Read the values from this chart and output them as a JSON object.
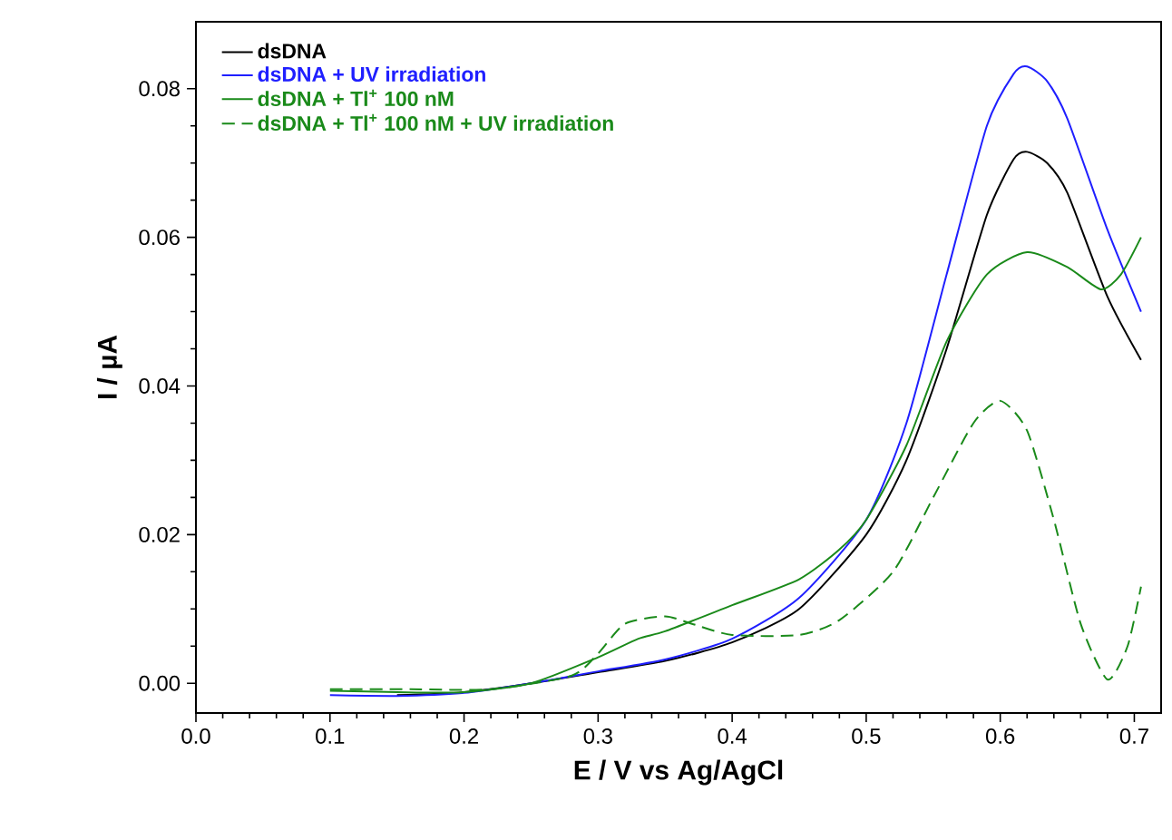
{
  "chart_data": {
    "type": "line",
    "xlabel": "E / V vs Ag/AgCl",
    "ylabel": "I / µA",
    "xlim": [
      0,
      0.72
    ],
    "ylim": [
      -0.004,
      0.089
    ],
    "xticks": [
      {
        "value": 0,
        "label": "0.0"
      },
      0.1,
      0.2,
      0.3,
      0.4,
      0.5,
      0.6,
      0.7
    ],
    "yticks": [
      {
        "value": 0,
        "label": "0.00"
      },
      0.02,
      0.04,
      0.06,
      0.08
    ],
    "legend": "top left",
    "grid": false,
    "series": [
      {
        "name": "dsDNA",
        "color": "#000000",
        "line_style": "solid",
        "x": [
          0.15,
          0.2,
          0.25,
          0.3,
          0.35,
          0.4,
          0.45,
          0.5,
          0.53,
          0.56,
          0.59,
          0.61,
          0.62,
          0.635,
          0.65,
          0.68,
          0.705
        ],
        "values": [
          -0.0016,
          -0.0012,
          0.0,
          0.0015,
          0.003,
          0.0055,
          0.01,
          0.02,
          0.03,
          0.045,
          0.063,
          0.0705,
          0.0715,
          0.07,
          0.066,
          0.052,
          0.0435
        ]
      },
      {
        "name": "dsDNA + UV irradiation",
        "color": "#1f1fff",
        "line_style": "solid",
        "x": [
          0.1,
          0.15,
          0.2,
          0.25,
          0.3,
          0.35,
          0.4,
          0.45,
          0.5,
          0.53,
          0.56,
          0.59,
          0.61,
          0.62,
          0.635,
          0.65,
          0.68,
          0.705
        ],
        "values": [
          -0.0016,
          -0.0017,
          -0.0013,
          0.0,
          0.0016,
          0.0032,
          0.006,
          0.0115,
          0.022,
          0.035,
          0.055,
          0.075,
          0.082,
          0.083,
          0.081,
          0.076,
          0.061,
          0.05
        ]
      },
      {
        "name": "dsDNA + Tl$^{+}$ 100 nM",
        "color": "#1a8a1a",
        "line_style": "solid",
        "x": [
          0.1,
          0.15,
          0.2,
          0.25,
          0.3,
          0.33,
          0.35,
          0.4,
          0.45,
          0.48,
          0.5,
          0.53,
          0.56,
          0.59,
          0.62,
          0.65,
          0.675,
          0.69,
          0.705
        ],
        "values": [
          -0.001,
          -0.0012,
          -0.0012,
          0.0,
          0.0035,
          0.006,
          0.007,
          0.0105,
          0.014,
          0.018,
          0.022,
          0.032,
          0.046,
          0.055,
          0.058,
          0.056,
          0.053,
          0.055,
          0.06
        ]
      },
      {
        "name": "dsDNA + Tl$^{+}$ 100 nM + UV irradiation",
        "color": "#1a8a1a",
        "line_style": "dashed",
        "x": [
          0.1,
          0.16,
          0.22,
          0.28,
          0.3,
          0.32,
          0.35,
          0.37,
          0.4,
          0.45,
          0.48,
          0.52,
          0.55,
          0.58,
          0.6,
          0.62,
          0.64,
          0.66,
          0.68,
          0.695,
          0.705
        ],
        "values": [
          -0.0008,
          -0.0008,
          -0.0008,
          0.001,
          0.004,
          0.008,
          0.009,
          0.008,
          0.0065,
          0.0065,
          0.0085,
          0.015,
          0.025,
          0.035,
          0.038,
          0.034,
          0.022,
          0.008,
          0.0005,
          0.005,
          0.013
        ]
      }
    ]
  }
}
